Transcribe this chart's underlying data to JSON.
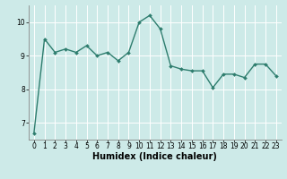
{
  "title": "",
  "xlabel": "Humidex (Indice chaleur)",
  "ylabel": "",
  "background_color": "#cdeae8",
  "line_color": "#2e7d6e",
  "grid_color": "#ffffff",
  "x": [
    0,
    1,
    2,
    3,
    4,
    5,
    6,
    7,
    8,
    9,
    10,
    11,
    12,
    13,
    14,
    15,
    16,
    17,
    18,
    19,
    20,
    21,
    22,
    23
  ],
  "y": [
    6.7,
    9.5,
    9.1,
    9.2,
    9.1,
    9.3,
    9.0,
    9.1,
    8.85,
    9.1,
    10.0,
    10.2,
    9.8,
    8.7,
    8.6,
    8.55,
    8.55,
    8.05,
    8.45,
    8.45,
    8.35,
    8.75,
    8.75,
    8.4
  ],
  "ylim": [
    6.5,
    10.5
  ],
  "xlim": [
    -0.5,
    23.5
  ],
  "yticks": [
    7,
    8,
    9,
    10
  ],
  "xticks": [
    0,
    1,
    2,
    3,
    4,
    5,
    6,
    7,
    8,
    9,
    10,
    11,
    12,
    13,
    14,
    15,
    16,
    17,
    18,
    19,
    20,
    21,
    22,
    23
  ],
  "axis_fontsize": 6.5,
  "tick_fontsize": 5.5,
  "xlabel_fontsize": 7.0,
  "line_width": 1.0,
  "marker_size": 2.0,
  "fig_width": 3.2,
  "fig_height": 2.0,
  "dpi": 100
}
